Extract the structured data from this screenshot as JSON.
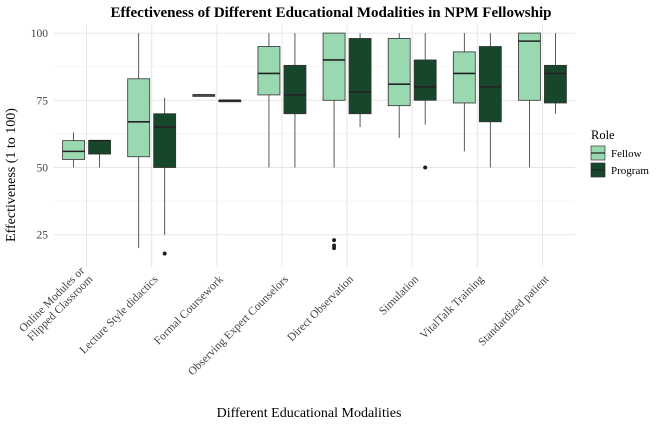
{
  "chart_data": {
    "type": "boxplot",
    "title": "Effectiveness of Different Educational Modalities in NPM Fellowship",
    "xlabel": "Different Educational Modalities",
    "ylabel": "Effectiveness (1 to 100)",
    "ylim": [
      13,
      103
    ],
    "yticks": [
      25,
      50,
      75,
      100
    ],
    "grid": true,
    "legend": {
      "title": "Role",
      "placement": "right",
      "entries": [
        "Fellow",
        "Program"
      ]
    },
    "colors": {
      "Fellow": "#99d8b0",
      "Program": "#17472a"
    },
    "categories": [
      "Online Modules or\nFlipped Classroom",
      "Lecture Style didactics",
      "Formal Coursework",
      "Observing Expert Counselors",
      "Direct Observation",
      "Simulation",
      "VitalTalk Training",
      "Standardized patient"
    ],
    "series": [
      {
        "name": "Fellow",
        "boxes": [
          {
            "min": 50,
            "q1": 53,
            "median": 56,
            "q3": 60,
            "max": 63,
            "outliers": []
          },
          {
            "min": 20,
            "q1": 54,
            "median": 67,
            "q3": 83,
            "max": 100,
            "outliers": []
          },
          {
            "min": 77,
            "q1": 77,
            "median": 77,
            "q3": 77,
            "max": 77,
            "outliers": []
          },
          {
            "min": 50,
            "q1": 77,
            "median": 85,
            "q3": 95,
            "max": 100,
            "outliers": []
          },
          {
            "min": 50,
            "q1": 75,
            "median": 90,
            "q3": 100,
            "max": 100,
            "outliers": [
              20,
              21,
              23
            ]
          },
          {
            "min": 61,
            "q1": 73,
            "median": 81,
            "q3": 98,
            "max": 100,
            "outliers": []
          },
          {
            "min": 56,
            "q1": 74,
            "median": 85,
            "q3": 93,
            "max": 100,
            "outliers": []
          },
          {
            "min": 50,
            "q1": 75,
            "median": 97,
            "q3": 100,
            "max": 100,
            "outliers": []
          }
        ]
      },
      {
        "name": "Program",
        "boxes": [
          {
            "min": 50,
            "q1": 55,
            "median": 60,
            "q3": 60,
            "max": 60,
            "outliers": []
          },
          {
            "min": 25,
            "q1": 50,
            "median": 65,
            "q3": 70,
            "max": 76,
            "outliers": [
              18
            ]
          },
          {
            "min": 75,
            "q1": 75,
            "median": 75,
            "q3": 75,
            "max": 75,
            "outliers": []
          },
          {
            "min": 50,
            "q1": 70,
            "median": 77,
            "q3": 88,
            "max": 100,
            "outliers": []
          },
          {
            "min": 65,
            "q1": 70,
            "median": 78,
            "q3": 98,
            "max": 100,
            "outliers": []
          },
          {
            "min": 66,
            "q1": 75,
            "median": 80,
            "q3": 90,
            "max": 100,
            "outliers": [
              50
            ]
          },
          {
            "min": 50,
            "q1": 67,
            "median": 80,
            "q3": 95,
            "max": 100,
            "outliers": []
          },
          {
            "min": 70,
            "q1": 74,
            "median": 85,
            "q3": 88,
            "max": 100,
            "outliers": []
          }
        ]
      }
    ]
  }
}
